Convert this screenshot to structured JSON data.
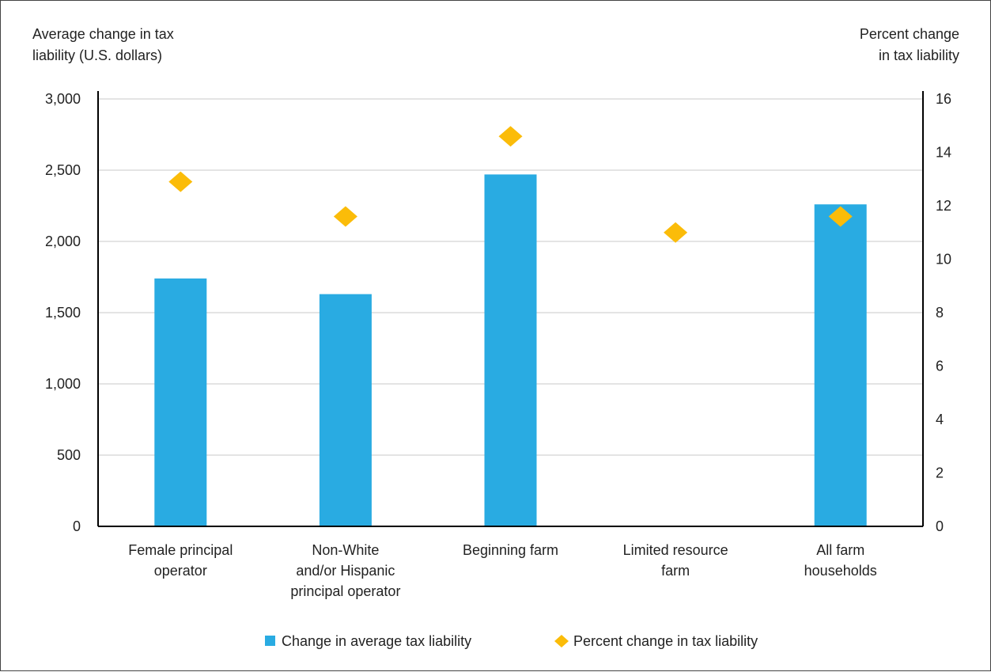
{
  "chart_data": {
    "type": "bar",
    "title": "",
    "ylabel_left": [
      "Average change in tax",
      "liability (U.S. dollars)"
    ],
    "ylabel_right": [
      "Percent change",
      "in tax liability"
    ],
    "categories": [
      [
        "Female principal",
        "operator"
      ],
      [
        "Non-White",
        "and/or Hispanic",
        "principal operator"
      ],
      [
        "Beginning farm"
      ],
      [
        "Limited resource",
        "farm"
      ],
      [
        "All farm",
        "households"
      ]
    ],
    "y_left": {
      "min": 0,
      "max": 3000,
      "ticks": [
        0,
        500,
        1000,
        1500,
        2000,
        2500,
        3000
      ],
      "tick_labels": [
        "0",
        "500",
        "1,000",
        "1,500",
        "2,000",
        "2,500",
        "3,000"
      ]
    },
    "y_right": {
      "min": 0,
      "max": 16,
      "ticks": [
        0,
        2,
        4,
        6,
        8,
        10,
        12,
        14,
        16
      ],
      "tick_labels": [
        "0",
        "2",
        "4",
        "6",
        "8",
        "10",
        "12",
        "14",
        "16"
      ]
    },
    "grid": true,
    "legend_position": "bottom",
    "series": [
      {
        "name": "Change in average tax liability",
        "type": "bar",
        "axis": "left",
        "color": "#29abe2",
        "values": [
          1740,
          1630,
          2470,
          5,
          2260
        ]
      },
      {
        "name": "Percent change in tax liability",
        "type": "scatter",
        "marker": "diamond",
        "axis": "right",
        "color": "#fbbc09",
        "values": [
          12.9,
          11.6,
          14.6,
          11.0,
          11.6
        ]
      }
    ]
  }
}
